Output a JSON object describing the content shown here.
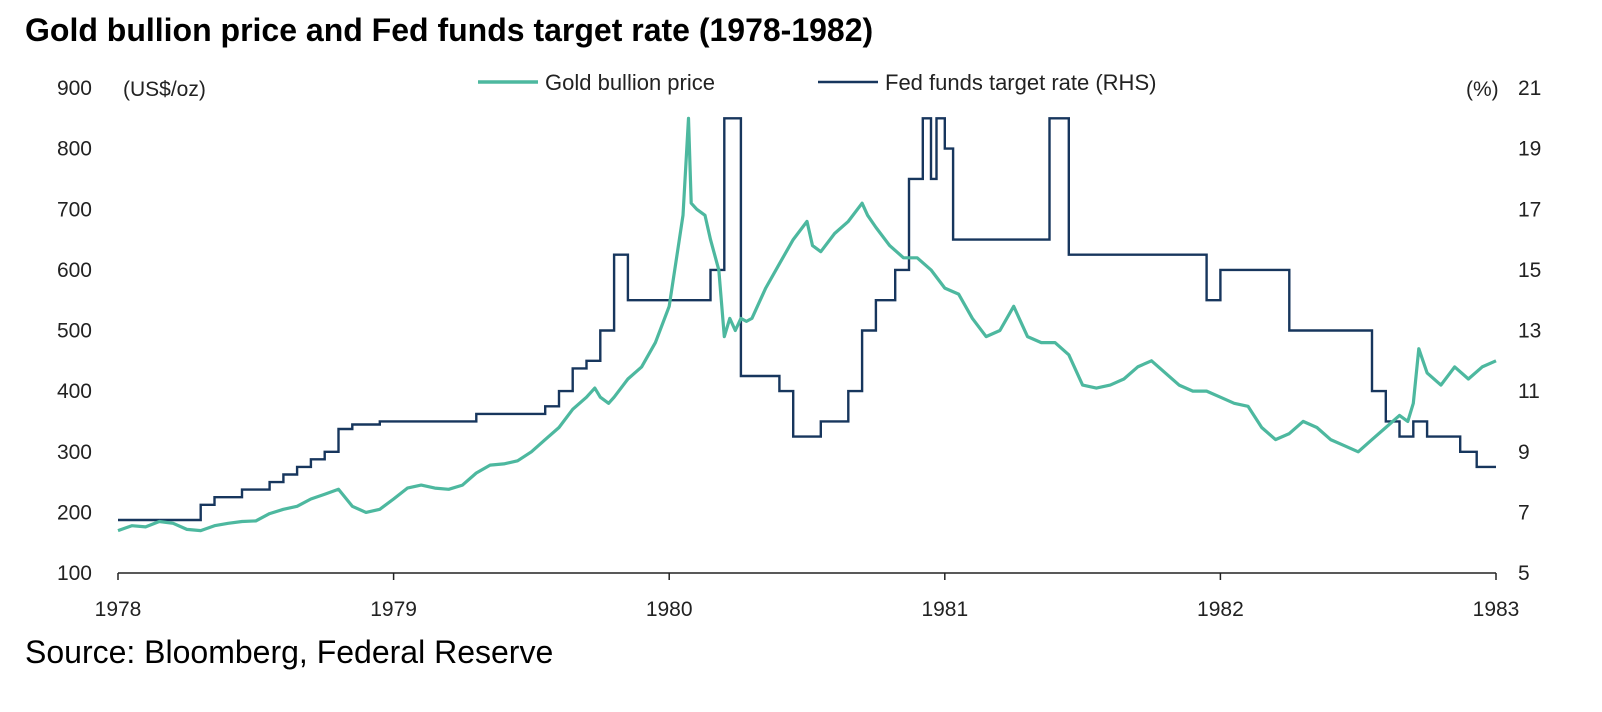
{
  "chart_data": {
    "type": "line",
    "title": "Gold bullion price and Fed funds target rate (1978-1982)",
    "source": "Source: Bloomberg, Federal Reserve",
    "left_unit": "(US$/oz)",
    "right_unit": "(%)",
    "x_ticks": [
      "1978",
      "1979",
      "1980",
      "1981",
      "1982",
      "1983"
    ],
    "xlim": [
      1978,
      1983
    ],
    "y_left_ticks": [
      "100",
      "200",
      "300",
      "400",
      "500",
      "600",
      "700",
      "800",
      "900"
    ],
    "y_left_lim": [
      100,
      900
    ],
    "y_right_ticks": [
      "5",
      "7",
      "9",
      "11",
      "13",
      "15",
      "17",
      "19",
      "21"
    ],
    "y_right_lim": [
      5,
      21
    ],
    "legend_position": "top-center",
    "grid": false,
    "colors": {
      "gold": "#4db89f",
      "fed": "#17365d"
    },
    "series": [
      {
        "name": "Gold bullion price",
        "axis": "left",
        "x": [
          1978.0,
          1978.05,
          1978.1,
          1978.15,
          1978.2,
          1978.25,
          1978.3,
          1978.35,
          1978.4,
          1978.45,
          1978.5,
          1978.55,
          1978.6,
          1978.65,
          1978.7,
          1978.75,
          1978.8,
          1978.85,
          1978.9,
          1978.95,
          1979.0,
          1979.05,
          1979.1,
          1979.15,
          1979.2,
          1979.25,
          1979.3,
          1979.35,
          1979.4,
          1979.45,
          1979.5,
          1979.55,
          1979.6,
          1979.65,
          1979.7,
          1979.73,
          1979.75,
          1979.78,
          1979.8,
          1979.85,
          1979.9,
          1979.95,
          1980.0,
          1980.03,
          1980.05,
          1980.07,
          1980.08,
          1980.1,
          1980.13,
          1980.15,
          1980.18,
          1980.2,
          1980.22,
          1980.24,
          1980.26,
          1980.28,
          1980.3,
          1980.35,
          1980.4,
          1980.45,
          1980.5,
          1980.52,
          1980.55,
          1980.6,
          1980.65,
          1980.7,
          1980.72,
          1980.75,
          1980.8,
          1980.85,
          1980.9,
          1980.95,
          1981.0,
          1981.05,
          1981.1,
          1981.15,
          1981.2,
          1981.25,
          1981.3,
          1981.35,
          1981.4,
          1981.45,
          1981.5,
          1981.55,
          1981.6,
          1981.65,
          1981.7,
          1981.75,
          1981.8,
          1981.85,
          1981.9,
          1981.95,
          1982.0,
          1982.05,
          1982.1,
          1982.15,
          1982.2,
          1982.25,
          1982.3,
          1982.35,
          1982.4,
          1982.45,
          1982.5,
          1982.55,
          1982.6,
          1982.65,
          1982.68,
          1982.7,
          1982.72,
          1982.75,
          1982.8,
          1982.85,
          1982.9,
          1982.95,
          1983.0
        ],
        "y": [
          170,
          178,
          176,
          185,
          182,
          172,
          170,
          178,
          182,
          185,
          186,
          198,
          205,
          210,
          222,
          230,
          238,
          210,
          200,
          205,
          222,
          240,
          245,
          240,
          238,
          245,
          265,
          278,
          280,
          285,
          300,
          320,
          340,
          370,
          390,
          405,
          390,
          380,
          390,
          420,
          440,
          480,
          540,
          630,
          690,
          850,
          710,
          700,
          690,
          650,
          600,
          490,
          520,
          500,
          520,
          515,
          520,
          570,
          610,
          650,
          680,
          640,
          630,
          660,
          680,
          710,
          690,
          670,
          640,
          620,
          620,
          600,
          570,
          560,
          520,
          490,
          500,
          540,
          490,
          480,
          480,
          460,
          410,
          405,
          410,
          420,
          440,
          450,
          430,
          410,
          400,
          400,
          390,
          380,
          375,
          340,
          320,
          330,
          350,
          340,
          320,
          310,
          300,
          320,
          340,
          360,
          350,
          380,
          470,
          430,
          410,
          440,
          420,
          440,
          450
        ]
      },
      {
        "name": "Fed funds target rate (RHS)",
        "axis": "right",
        "x": [
          1978.0,
          1978.3,
          1978.35,
          1978.45,
          1978.55,
          1978.6,
          1978.65,
          1978.7,
          1978.75,
          1978.8,
          1978.85,
          1978.95,
          1979.3,
          1979.55,
          1979.6,
          1979.65,
          1979.7,
          1979.75,
          1979.8,
          1979.85,
          1979.95,
          1980.15,
          1980.2,
          1980.26,
          1980.4,
          1980.45,
          1980.55,
          1980.65,
          1980.7,
          1980.75,
          1980.82,
          1980.87,
          1980.92,
          1980.95,
          1980.97,
          1981.0,
          1981.03,
          1981.38,
          1981.45,
          1981.95,
          1982.0,
          1982.25,
          1982.55,
          1982.6,
          1982.65,
          1982.7,
          1982.75,
          1982.8,
          1982.87,
          1982.93,
          1982.97
        ],
        "y": [
          6.75,
          7.25,
          7.5,
          7.75,
          8.0,
          8.25,
          8.5,
          8.75,
          9.0,
          9.75,
          9.9,
          10.0,
          10.25,
          10.5,
          11.0,
          11.75,
          12.0,
          13.0,
          15.5,
          14.0,
          14.0,
          15.0,
          20.0,
          11.5,
          11.0,
          9.5,
          10.0,
          11.0,
          13.0,
          14.0,
          15.0,
          18.0,
          20.0,
          18.0,
          20.0,
          19.0,
          16.0,
          20.0,
          15.5,
          14.0,
          15.0,
          13.0,
          11.0,
          10.0,
          9.5,
          10.0,
          9.5,
          9.5,
          9.0,
          8.5,
          8.5
        ]
      }
    ]
  }
}
